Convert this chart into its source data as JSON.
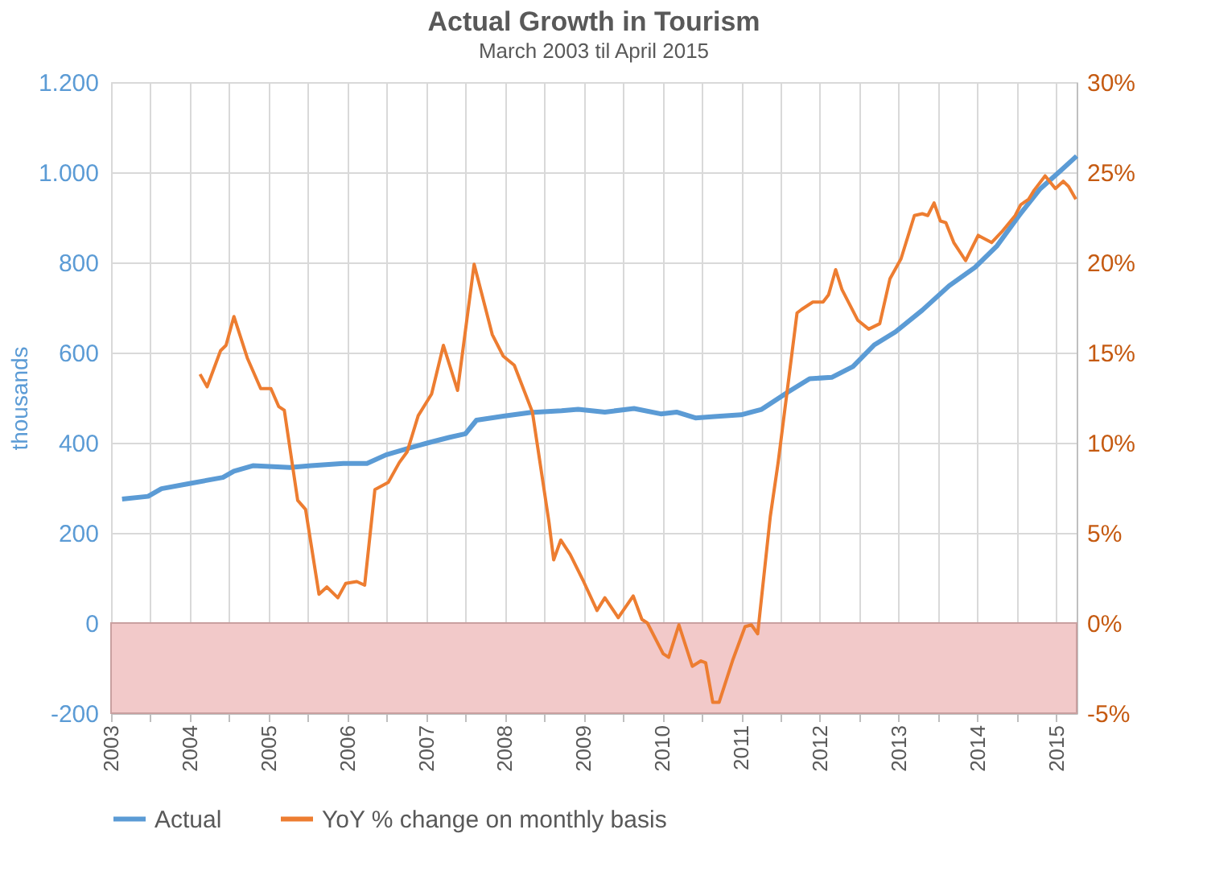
{
  "chart_data": {
    "type": "line",
    "title": "Actual Growth in Tourism",
    "subtitle": "March 2003 til April 2015",
    "ylabel": "thousands",
    "series": [
      {
        "name": "Actual",
        "color": "#5b9bd5",
        "x": [
          2003.14,
          2003.47,
          2003.64,
          2003.98,
          2004.42,
          2004.56,
          2004.8,
          2005.27,
          2005.54,
          2005.95,
          2006.25,
          2006.49,
          2006.76,
          2007.03,
          2007.3,
          2007.5,
          2007.64,
          2007.98,
          2008.32,
          2008.72,
          2008.93,
          2009.27,
          2009.64,
          2009.98,
          2010.18,
          2010.42,
          2010.66,
          2011.0,
          2011.26,
          2011.6,
          2011.87,
          2012.15,
          2012.42,
          2012.69,
          2012.96,
          2013.3,
          2013.64,
          2013.97,
          2014.25,
          2014.52,
          2014.79,
          2015.06,
          2015.26
        ],
        "values": [
          275,
          281,
          298,
          309,
          323,
          337,
          349,
          345,
          349,
          354,
          354,
          373,
          387,
          400,
          412,
          420,
          450,
          459,
          467,
          471,
          474,
          468,
          476,
          464,
          468,
          455,
          458,
          462,
          474,
          513,
          542,
          545,
          569,
          617,
          646,
          694,
          748,
          789,
          837,
          902,
          962,
          1004,
          1036
        ]
      },
      {
        "name": "YoY % change on monthly basis",
        "color": "#ed7d31",
        "axis": "y2",
        "x": [
          2004.13,
          2004.22,
          2004.39,
          2004.46,
          2004.56,
          2004.73,
          2004.9,
          2005.03,
          2005.13,
          2005.2,
          2005.37,
          2005.47,
          2005.64,
          2005.74,
          2005.88,
          2005.98,
          2006.12,
          2006.22,
          2006.35,
          2006.52,
          2006.66,
          2006.76,
          2006.9,
          2007.07,
          2007.22,
          2007.4,
          2007.61,
          2007.84,
          2007.98,
          2008.12,
          2008.35,
          2008.56,
          2008.62,
          2008.71,
          2008.83,
          2009.0,
          2009.17,
          2009.27,
          2009.44,
          2009.63,
          2009.74,
          2009.81,
          2010.01,
          2010.08,
          2010.21,
          2010.38,
          2010.49,
          2010.55,
          2010.64,
          2010.72,
          2010.89,
          2011.05,
          2011.13,
          2011.21,
          2011.37,
          2011.47,
          2011.71,
          2011.77,
          2011.91,
          2012.04,
          2012.11,
          2012.2,
          2012.28,
          2012.48,
          2012.62,
          2012.76,
          2012.89,
          2013.03,
          2013.2,
          2013.3,
          2013.37,
          2013.45,
          2013.53,
          2013.6,
          2013.7,
          2013.85,
          2014.01,
          2014.18,
          2014.31,
          2014.48,
          2014.55,
          2014.65,
          2014.72,
          2014.86,
          2014.99,
          2015.09,
          2015.16,
          2015.25
        ],
        "values": [
          13.8,
          13.1,
          15.1,
          15.4,
          17.0,
          14.7,
          13.0,
          13.0,
          12.0,
          11.8,
          6.8,
          6.3,
          1.6,
          2.0,
          1.4,
          2.2,
          2.3,
          2.1,
          7.4,
          7.8,
          8.9,
          9.5,
          11.5,
          12.7,
          15.4,
          12.9,
          19.9,
          16.0,
          14.8,
          14.3,
          11.7,
          5.6,
          3.5,
          4.6,
          3.8,
          2.3,
          0.7,
          1.4,
          0.3,
          1.5,
          0.2,
          0,
          -1.7,
          -1.9,
          -0.1,
          -2.4,
          -2.1,
          -2.2,
          -4.4,
          -4.4,
          -2.1,
          -0.2,
          -0.1,
          -0.6,
          5.9,
          8.9,
          17.2,
          17.4,
          17.8,
          17.8,
          18.2,
          19.6,
          18.5,
          16.8,
          16.3,
          16.6,
          19.1,
          20.2,
          22.6,
          22.7,
          22.6,
          23.3,
          22.3,
          22.2,
          21.1,
          20.1,
          21.5,
          21.1,
          21.7,
          22.6,
          23.2,
          23.5,
          24.0,
          24.8,
          24.1,
          24.5,
          24.2,
          23.5
        ]
      }
    ],
    "xlim": [
      2003,
      2015.26
    ],
    "xticks": [
      2003,
      {
        "value": 2003.5,
        "label": null
      },
      2004,
      {
        "value": 2004.5,
        "label": null
      },
      2005,
      {
        "value": 2005.5,
        "label": null
      },
      2006,
      {
        "value": 2006.5,
        "label": null
      },
      2007,
      {
        "value": 2007.5,
        "label": null
      },
      2008,
      {
        "value": 2008.5,
        "label": null
      },
      2009,
      {
        "value": 2009.5,
        "label": null
      },
      2010,
      {
        "value": 2010.5,
        "label": null
      },
      2011,
      {
        "value": 2011.5,
        "label": null
      },
      2012,
      {
        "value": 2012.5,
        "label": null
      },
      2013,
      {
        "value": 2013.5,
        "label": null
      },
      2014,
      {
        "value": 2014.5,
        "label": null
      },
      2015
    ],
    "ylim": [
      -200,
      1200
    ],
    "yticks": [
      -200,
      0,
      200,
      400,
      600,
      800,
      {
        "value": 1000,
        "label": "1.000"
      },
      {
        "value": 1200,
        "label": "1.200"
      }
    ],
    "y2lim": [
      -5,
      30
    ],
    "y2ticks": [
      {
        "value": -5,
        "label": "-5%"
      },
      {
        "value": 0,
        "label": "0%"
      },
      {
        "value": 5,
        "label": "5%"
      },
      {
        "value": 10,
        "label": "10%"
      },
      {
        "value": 15,
        "label": "15%"
      },
      {
        "value": 20,
        "label": "20%"
      },
      {
        "value": 25,
        "label": "25%"
      },
      {
        "value": 30,
        "label": "30%"
      }
    ],
    "bands": [
      {
        "axis": "y",
        "from": -200,
        "to": 0,
        "color": "#f2c9c9"
      }
    ],
    "grid": true,
    "legend": "bottom"
  }
}
